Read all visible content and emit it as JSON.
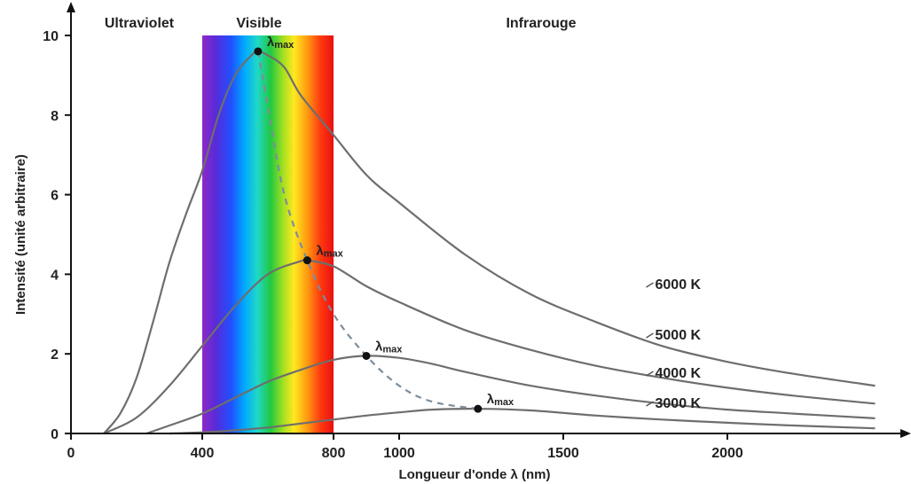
{
  "chart_data": {
    "type": "line",
    "title": "",
    "xlabel": "Longueur d'onde λ (nm)",
    "ylabel": "Intensité (unité arbitraire)",
    "xlim": [
      0,
      2500
    ],
    "ylim": [
      0,
      10
    ],
    "x_ticks": [
      0,
      400,
      800,
      1000,
      1500,
      2000
    ],
    "y_ticks": [
      0,
      2,
      4,
      6,
      8,
      10
    ],
    "regions": [
      {
        "name": "Ultraviolet",
        "x_range": [
          0,
          400
        ]
      },
      {
        "name": "Visible",
        "x_range": [
          400,
          800
        ]
      },
      {
        "name": "Infrarouge",
        "x_range": [
          800,
          2500
        ]
      }
    ],
    "spectrum_band": [
      400,
      800
    ],
    "series": [
      {
        "name": "6000 K",
        "temperature": 6000,
        "peak": {
          "x": 570,
          "y": 9.6
        },
        "x": [
          100,
          150,
          200,
          250,
          300,
          350,
          400,
          450,
          500,
          550,
          570,
          600,
          650,
          700,
          800,
          900,
          1000,
          1200,
          1400,
          1600,
          1800,
          2000,
          2200,
          2450
        ],
        "y": [
          0.0,
          0.5,
          1.4,
          2.8,
          4.3,
          5.5,
          6.6,
          8.0,
          9.0,
          9.5,
          9.6,
          9.5,
          9.2,
          8.5,
          7.5,
          6.5,
          5.8,
          4.5,
          3.5,
          2.8,
          2.2,
          1.8,
          1.5,
          1.2
        ]
      },
      {
        "name": "5000 K",
        "temperature": 5000,
        "peak": {
          "x": 720,
          "y": 4.35
        },
        "x": [
          100,
          200,
          300,
          400,
          500,
          600,
          700,
          720,
          800,
          900,
          1000,
          1200,
          1400,
          1600,
          1800,
          2000,
          2200,
          2450
        ],
        "y": [
          0.0,
          0.4,
          1.2,
          2.2,
          3.2,
          4.0,
          4.33,
          4.35,
          4.2,
          3.7,
          3.3,
          2.6,
          2.1,
          1.7,
          1.4,
          1.15,
          0.95,
          0.75
        ]
      },
      {
        "name": "4000 K",
        "temperature": 4000,
        "peak": {
          "x": 900,
          "y": 1.95
        },
        "x": [
          230,
          300,
          400,
          500,
          600,
          700,
          800,
          900,
          1000,
          1100,
          1200,
          1400,
          1600,
          1800,
          2000,
          2200,
          2450
        ],
        "y": [
          0.0,
          0.2,
          0.5,
          0.9,
          1.3,
          1.6,
          1.85,
          1.95,
          1.9,
          1.75,
          1.55,
          1.2,
          0.95,
          0.75,
          0.6,
          0.5,
          0.38
        ]
      },
      {
        "name": "3000 K",
        "temperature": 3000,
        "peak": {
          "x": 1240,
          "y": 0.62
        },
        "x": [
          300,
          400,
          500,
          600,
          700,
          800,
          900,
          1000,
          1100,
          1240,
          1400,
          1600,
          1800,
          2000,
          2200,
          2450
        ],
        "y": [
          0.0,
          0.03,
          0.08,
          0.15,
          0.25,
          0.35,
          0.45,
          0.53,
          0.6,
          0.62,
          0.58,
          0.45,
          0.35,
          0.27,
          0.2,
          0.13
        ]
      }
    ],
    "peak_label": "λmax",
    "peak_label_main": "λ",
    "peak_label_sub": "max",
    "wien_curve": {
      "x": [
        570,
        600,
        650,
        720,
        800,
        900,
        1000,
        1100,
        1240
      ],
      "y": [
        9.6,
        8.2,
        6.0,
        4.35,
        3.0,
        1.95,
        1.2,
        0.8,
        0.62
      ]
    },
    "colors": {
      "curve": "#6e6e6e",
      "wien": "#7d8c9c",
      "axis": "#111111",
      "point": "#111111"
    }
  }
}
